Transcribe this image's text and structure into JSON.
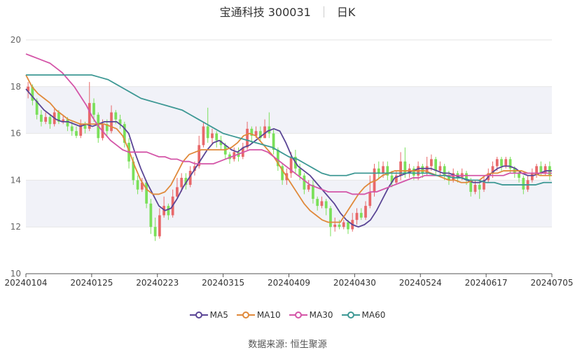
{
  "title": {
    "name": "宝通科技 300031",
    "period": "日K"
  },
  "source": {
    "label": "数据来源:",
    "value": "恒生聚源"
  },
  "colors": {
    "up": "#e8686a",
    "down": "#7ae05a",
    "MA5": "#5a4595",
    "MA10": "#e0893a",
    "MA30": "#d455a8",
    "MA60": "#3d9894",
    "band": "#f1f2f8",
    "grid": "#e6e6e6",
    "axis": "#555555"
  },
  "chart_data": {
    "type": "candlestick",
    "ylim": [
      10,
      20
    ],
    "yticks": [
      10,
      12,
      14,
      16,
      18,
      20
    ],
    "xticks": [
      "20240104",
      "20240125",
      "20240223",
      "20240315",
      "20240409",
      "20240430",
      "20240524",
      "20240617",
      "20240705"
    ],
    "legend": [
      "MA5",
      "MA10",
      "MA30",
      "MA60"
    ],
    "legend_position": "bottom",
    "candles": [
      [
        17.8,
        18.0,
        18.2,
        17.5
      ],
      [
        18.0,
        17.4,
        18.1,
        17.2
      ],
      [
        17.4,
        16.8,
        17.5,
        16.6
      ],
      [
        16.8,
        16.5,
        17.0,
        16.3
      ],
      [
        16.5,
        16.7,
        16.9,
        16.4
      ],
      [
        16.7,
        16.4,
        16.8,
        16.2
      ],
      [
        16.4,
        16.9,
        17.1,
        16.3
      ],
      [
        16.9,
        16.5,
        17.0,
        16.4
      ],
      [
        16.5,
        16.6,
        16.8,
        16.4
      ],
      [
        16.6,
        16.3,
        16.7,
        16.1
      ],
      [
        16.3,
        16.1,
        16.5,
        15.9
      ],
      [
        16.1,
        15.9,
        16.3,
        15.8
      ],
      [
        15.9,
        16.4,
        16.6,
        15.8
      ],
      [
        16.4,
        16.2,
        16.5,
        16.0
      ],
      [
        16.2,
        17.3,
        18.2,
        16.1
      ],
      [
        17.3,
        16.8,
        17.5,
        16.5
      ],
      [
        16.8,
        15.8,
        16.9,
        15.6
      ],
      [
        15.8,
        16.4,
        16.6,
        15.7
      ],
      [
        16.4,
        16.1,
        16.6,
        15.9
      ],
      [
        16.1,
        16.9,
        17.2,
        16.0
      ],
      [
        16.9,
        16.6,
        17.0,
        16.4
      ],
      [
        16.6,
        16.4,
        16.8,
        16.2
      ],
      [
        16.4,
        15.6,
        16.5,
        15.4
      ],
      [
        15.6,
        14.8,
        15.8,
        14.5
      ],
      [
        14.8,
        14.0,
        15.0,
        13.8
      ],
      [
        14.0,
        13.6,
        14.2,
        13.4
      ],
      [
        13.6,
        13.9,
        14.1,
        13.5
      ],
      [
        13.9,
        13.0,
        14.0,
        12.8
      ],
      [
        13.0,
        12.0,
        13.2,
        11.7
      ],
      [
        12.0,
        11.6,
        12.4,
        11.4
      ],
      [
        11.6,
        12.5,
        12.8,
        11.5
      ],
      [
        12.5,
        12.9,
        13.3,
        12.4
      ],
      [
        12.9,
        12.5,
        13.0,
        12.3
      ],
      [
        12.5,
        13.3,
        13.6,
        12.4
      ],
      [
        13.3,
        13.7,
        14.1,
        13.2
      ],
      [
        13.7,
        14.1,
        14.3,
        13.5
      ],
      [
        14.1,
        13.8,
        14.3,
        13.6
      ],
      [
        13.8,
        14.4,
        14.6,
        13.7
      ],
      [
        14.4,
        14.6,
        14.8,
        14.2
      ],
      [
        14.6,
        15.5,
        15.9,
        14.5
      ],
      [
        15.5,
        16.3,
        16.5,
        15.4
      ],
      [
        16.3,
        15.8,
        17.1,
        15.6
      ],
      [
        15.8,
        16.0,
        16.2,
        15.5
      ],
      [
        16.0,
        15.7,
        16.1,
        15.4
      ],
      [
        15.7,
        15.5,
        15.9,
        15.3
      ],
      [
        15.5,
        15.1,
        15.6,
        14.9
      ],
      [
        15.1,
        14.9,
        15.2,
        14.7
      ],
      [
        14.9,
        15.2,
        15.4,
        14.8
      ],
      [
        15.2,
        15.0,
        15.4,
        14.8
      ],
      [
        15.0,
        15.4,
        15.6,
        14.9
      ],
      [
        15.4,
        16.2,
        16.5,
        15.3
      ],
      [
        16.2,
        15.9,
        16.3,
        15.6
      ],
      [
        15.9,
        16.1,
        16.3,
        15.8
      ],
      [
        16.1,
        15.8,
        16.3,
        15.7
      ],
      [
        15.8,
        16.3,
        16.6,
        15.8
      ],
      [
        16.3,
        16.0,
        16.9,
        15.8
      ],
      [
        16.0,
        15.3,
        16.2,
        15.1
      ],
      [
        15.3,
        14.6,
        15.4,
        14.4
      ],
      [
        14.6,
        14.0,
        14.7,
        13.8
      ],
      [
        14.0,
        14.3,
        14.5,
        13.8
      ],
      [
        14.3,
        15.0,
        15.2,
        14.1
      ],
      [
        15.0,
        14.5,
        15.3,
        14.3
      ],
      [
        14.5,
        14.2,
        14.7,
        14.0
      ],
      [
        14.2,
        13.6,
        14.3,
        13.4
      ],
      [
        13.6,
        13.8,
        14.0,
        13.5
      ],
      [
        13.8,
        13.2,
        14.0,
        13.0
      ],
      [
        13.2,
        12.9,
        13.3,
        12.7
      ],
      [
        12.9,
        13.1,
        13.3,
        12.8
      ],
      [
        13.1,
        12.8,
        13.2,
        12.5
      ],
      [
        12.8,
        12.0,
        12.9,
        11.6
      ],
      [
        12.0,
        12.1,
        12.4,
        11.8
      ],
      [
        12.1,
        12.0,
        12.3,
        11.9
      ],
      [
        12.0,
        12.2,
        12.3,
        11.9
      ],
      [
        12.2,
        11.9,
        12.3,
        11.7
      ],
      [
        11.9,
        12.3,
        12.6,
        11.8
      ],
      [
        12.3,
        12.6,
        12.8,
        12.1
      ],
      [
        12.6,
        12.4,
        12.8,
        12.3
      ],
      [
        12.4,
        12.9,
        13.1,
        12.3
      ],
      [
        12.9,
        13.5,
        14.2,
        12.8
      ],
      [
        13.5,
        14.5,
        14.7,
        13.3
      ],
      [
        14.5,
        14.3,
        14.8,
        14.1
      ],
      [
        14.3,
        14.6,
        14.8,
        14.1
      ],
      [
        14.6,
        14.2,
        14.8,
        14.0
      ],
      [
        14.2,
        13.9,
        14.4,
        13.7
      ],
      [
        13.9,
        14.2,
        14.4,
        13.8
      ],
      [
        14.2,
        14.8,
        15.2,
        14.0
      ],
      [
        14.8,
        14.3,
        15.4,
        14.1
      ],
      [
        14.3,
        14.5,
        14.7,
        14.1
      ],
      [
        14.5,
        14.2,
        14.6,
        14.0
      ],
      [
        14.2,
        14.6,
        14.8,
        14.0
      ],
      [
        14.6,
        14.3,
        14.7,
        14.1
      ],
      [
        14.3,
        14.6,
        15.0,
        14.2
      ],
      [
        14.6,
        14.9,
        15.1,
        14.4
      ],
      [
        14.9,
        14.4,
        15.0,
        14.2
      ],
      [
        14.4,
        14.6,
        14.8,
        14.2
      ],
      [
        14.6,
        14.2,
        14.7,
        14.0
      ],
      [
        14.2,
        14.0,
        14.4,
        13.8
      ],
      [
        14.0,
        14.3,
        14.5,
        13.9
      ],
      [
        14.3,
        14.1,
        14.4,
        13.9
      ],
      [
        14.1,
        14.3,
        14.5,
        14.0
      ],
      [
        14.3,
        14.0,
        14.4,
        13.8
      ],
      [
        14.0,
        13.5,
        14.1,
        13.3
      ],
      [
        13.5,
        13.8,
        14.0,
        13.4
      ],
      [
        13.8,
        13.6,
        14.0,
        13.2
      ],
      [
        13.6,
        14.0,
        14.2,
        13.5
      ],
      [
        14.0,
        14.3,
        14.5,
        13.9
      ],
      [
        14.3,
        14.6,
        14.8,
        14.1
      ],
      [
        14.6,
        14.9,
        15.0,
        14.4
      ],
      [
        14.9,
        14.6,
        15.0,
        14.4
      ],
      [
        14.6,
        14.9,
        15.0,
        14.5
      ],
      [
        14.9,
        14.5,
        15.0,
        14.3
      ],
      [
        14.5,
        14.3,
        14.6,
        14.1
      ],
      [
        14.3,
        14.1,
        14.4,
        13.9
      ],
      [
        14.1,
        13.6,
        14.2,
        13.4
      ],
      [
        13.6,
        14.0,
        14.2,
        13.5
      ],
      [
        14.0,
        14.3,
        14.5,
        13.9
      ],
      [
        14.3,
        14.6,
        14.7,
        14.1
      ],
      [
        14.6,
        14.3,
        14.8,
        14.2
      ],
      [
        14.3,
        14.6,
        14.7,
        14.2
      ],
      [
        14.6,
        14.2,
        14.8,
        14.0
      ]
    ],
    "series": [
      {
        "name": "MA5",
        "values": [
          17.9,
          17.6,
          17.3,
          17.0,
          16.8,
          16.6,
          16.5,
          16.5,
          16.4,
          16.3,
          16.4,
          16.3,
          16.4,
          16.5,
          16.5,
          16.5,
          16.3,
          16.0,
          15.2,
          14.5,
          13.9,
          13.4,
          12.9,
          12.7,
          12.8,
          13.2,
          13.7,
          14.1,
          14.5,
          14.9,
          15.3,
          15.6,
          15.7,
          15.5,
          15.3,
          15.2,
          15.4,
          15.5,
          15.7,
          15.9,
          16.1,
          16.2,
          16.1,
          15.6,
          15.0,
          14.6,
          14.4,
          14.2,
          13.9,
          13.6,
          13.3,
          13.0,
          12.6,
          12.3,
          12.1,
          12.0,
          12.1,
          12.3,
          12.7,
          13.2,
          13.7,
          14.1,
          14.2,
          14.3,
          14.4,
          14.5,
          14.5,
          14.5,
          14.4,
          14.3,
          14.3,
          14.2,
          14.1,
          14.0,
          13.9,
          13.9,
          14.0,
          14.3,
          14.5,
          14.6,
          14.6,
          14.5,
          14.3,
          14.2,
          14.2,
          14.3,
          14.4,
          14.4
        ]
      },
      {
        "name": "MA10",
        "values": [
          18.5,
          18.0,
          17.7,
          17.5,
          17.3,
          17.0,
          16.8,
          16.6,
          16.5,
          16.4,
          16.4,
          16.4,
          16.4,
          16.4,
          16.3,
          16.2,
          15.9,
          15.3,
          14.6,
          14.0,
          13.6,
          13.4,
          13.4,
          13.5,
          13.8,
          14.3,
          14.8,
          15.1,
          15.2,
          15.3,
          15.3,
          15.3,
          15.3,
          15.3,
          15.4,
          15.6,
          15.9,
          16.0,
          15.9,
          15.6,
          15.3,
          15.0,
          14.6,
          14.2,
          13.8,
          13.4,
          13.0,
          12.7,
          12.5,
          12.3,
          12.2,
          12.2,
          12.2,
          12.6,
          13.0,
          13.4,
          13.7,
          13.9,
          14.0,
          14.2,
          14.3,
          14.4,
          14.4,
          14.4,
          14.4,
          14.4,
          14.4,
          14.3,
          14.2,
          14.1,
          14.0,
          14.0,
          13.9,
          13.9,
          14.0,
          14.0,
          14.2,
          14.3,
          14.3,
          14.4,
          14.4,
          14.4,
          14.4,
          14.3,
          14.3,
          14.2,
          14.2,
          14.2
        ]
      },
      {
        "name": "MA30",
        "values": [
          19.4,
          19.3,
          19.2,
          19.1,
          19.0,
          18.8,
          18.6,
          18.3,
          18.0,
          17.6,
          17.2,
          16.7,
          16.3,
          16.0,
          15.7,
          15.5,
          15.3,
          15.2,
          15.2,
          15.2,
          15.2,
          15.1,
          15.0,
          15.0,
          14.9,
          14.9,
          14.8,
          14.8,
          14.7,
          14.7,
          14.7,
          14.7,
          14.8,
          14.9,
          15.0,
          15.1,
          15.2,
          15.3,
          15.3,
          15.3,
          15.2,
          15.0,
          14.8,
          14.6,
          14.4,
          14.2,
          14.0,
          13.8,
          13.7,
          13.6,
          13.5,
          13.5,
          13.5,
          13.5,
          13.4,
          13.4,
          13.4,
          13.5,
          13.5,
          13.6,
          13.7,
          13.8,
          13.9,
          14.0,
          14.1,
          14.1,
          14.2,
          14.2,
          14.2,
          14.2,
          14.2,
          14.2,
          14.2,
          14.2,
          14.2,
          14.2,
          14.2,
          14.2,
          14.2,
          14.2,
          14.3,
          14.3,
          14.3,
          14.3,
          14.3,
          14.3,
          14.3,
          14.3
        ]
      },
      {
        "name": "MA60",
        "values": [
          18.5,
          18.5,
          18.5,
          18.5,
          18.5,
          18.5,
          18.5,
          18.5,
          18.5,
          18.4,
          18.3,
          18.1,
          17.9,
          17.7,
          17.5,
          17.4,
          17.3,
          17.2,
          17.1,
          17.0,
          16.8,
          16.6,
          16.4,
          16.2,
          16.0,
          15.9,
          15.8,
          15.7,
          15.6,
          15.5,
          15.4,
          15.2,
          15.0,
          14.9,
          14.7,
          14.5,
          14.3,
          14.2,
          14.2,
          14.2,
          14.3,
          14.3,
          14.3,
          14.3,
          14.3,
          14.3,
          14.3,
          14.3,
          14.3,
          14.3,
          14.2,
          14.2,
          14.1,
          14.1,
          14.0,
          14.0,
          13.9,
          13.9,
          13.8,
          13.8,
          13.8,
          13.8,
          13.8,
          13.9,
          13.9
        ]
      }
    ]
  }
}
